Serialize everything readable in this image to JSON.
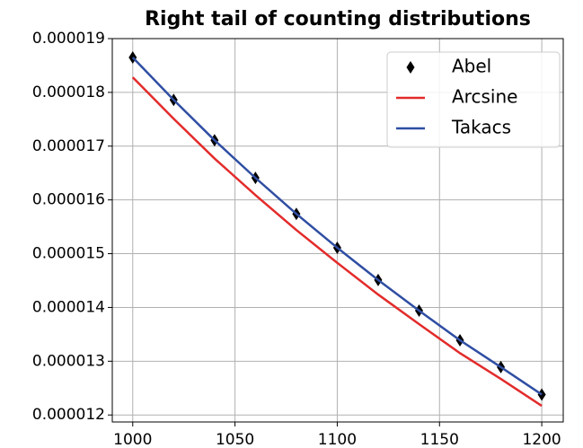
{
  "chart_data": {
    "type": "line",
    "title": "Right tail of counting distributions",
    "x": [
      1000,
      1020,
      1040,
      1060,
      1080,
      1100,
      1120,
      1140,
      1160,
      1180,
      1200
    ],
    "series": [
      {
        "name": "Abel",
        "color": "#000000",
        "linestyle": "none",
        "marker": "diamond",
        "values": [
          1.865e-05,
          1.786e-05,
          1.711e-05,
          1.641e-05,
          1.574e-05,
          1.511e-05,
          1.451e-05,
          1.394e-05,
          1.339e-05,
          1.289e-05,
          1.238e-05
        ]
      },
      {
        "name": "Arcsine",
        "color": "#e32b2b",
        "linestyle": "solid",
        "marker": "none",
        "values": [
          1.828e-05,
          1.751e-05,
          1.677e-05,
          1.609e-05,
          1.544e-05,
          1.483e-05,
          1.424e-05,
          1.369e-05,
          1.315e-05,
          1.267e-05,
          1.217e-05
        ]
      },
      {
        "name": "Takacs",
        "color": "#2f4ea3",
        "linestyle": "solid",
        "marker": "none",
        "values": [
          1.865e-05,
          1.786e-05,
          1.711e-05,
          1.641e-05,
          1.574e-05,
          1.511e-05,
          1.451e-05,
          1.394e-05,
          1.339e-05,
          1.289e-05,
          1.238e-05
        ]
      }
    ],
    "xlim": [
      990,
      1210.5
    ],
    "xticks": [
      1000,
      1050,
      1100,
      1150,
      1200
    ],
    "ylim": [
      1.187e-05,
      1.9e-05
    ],
    "yticks": [
      1.2e-05,
      1.3e-05,
      1.4e-05,
      1.5e-05,
      1.6e-05,
      1.7e-05,
      1.8e-05,
      1.9e-05
    ],
    "grid": true,
    "legend": "upper right"
  }
}
